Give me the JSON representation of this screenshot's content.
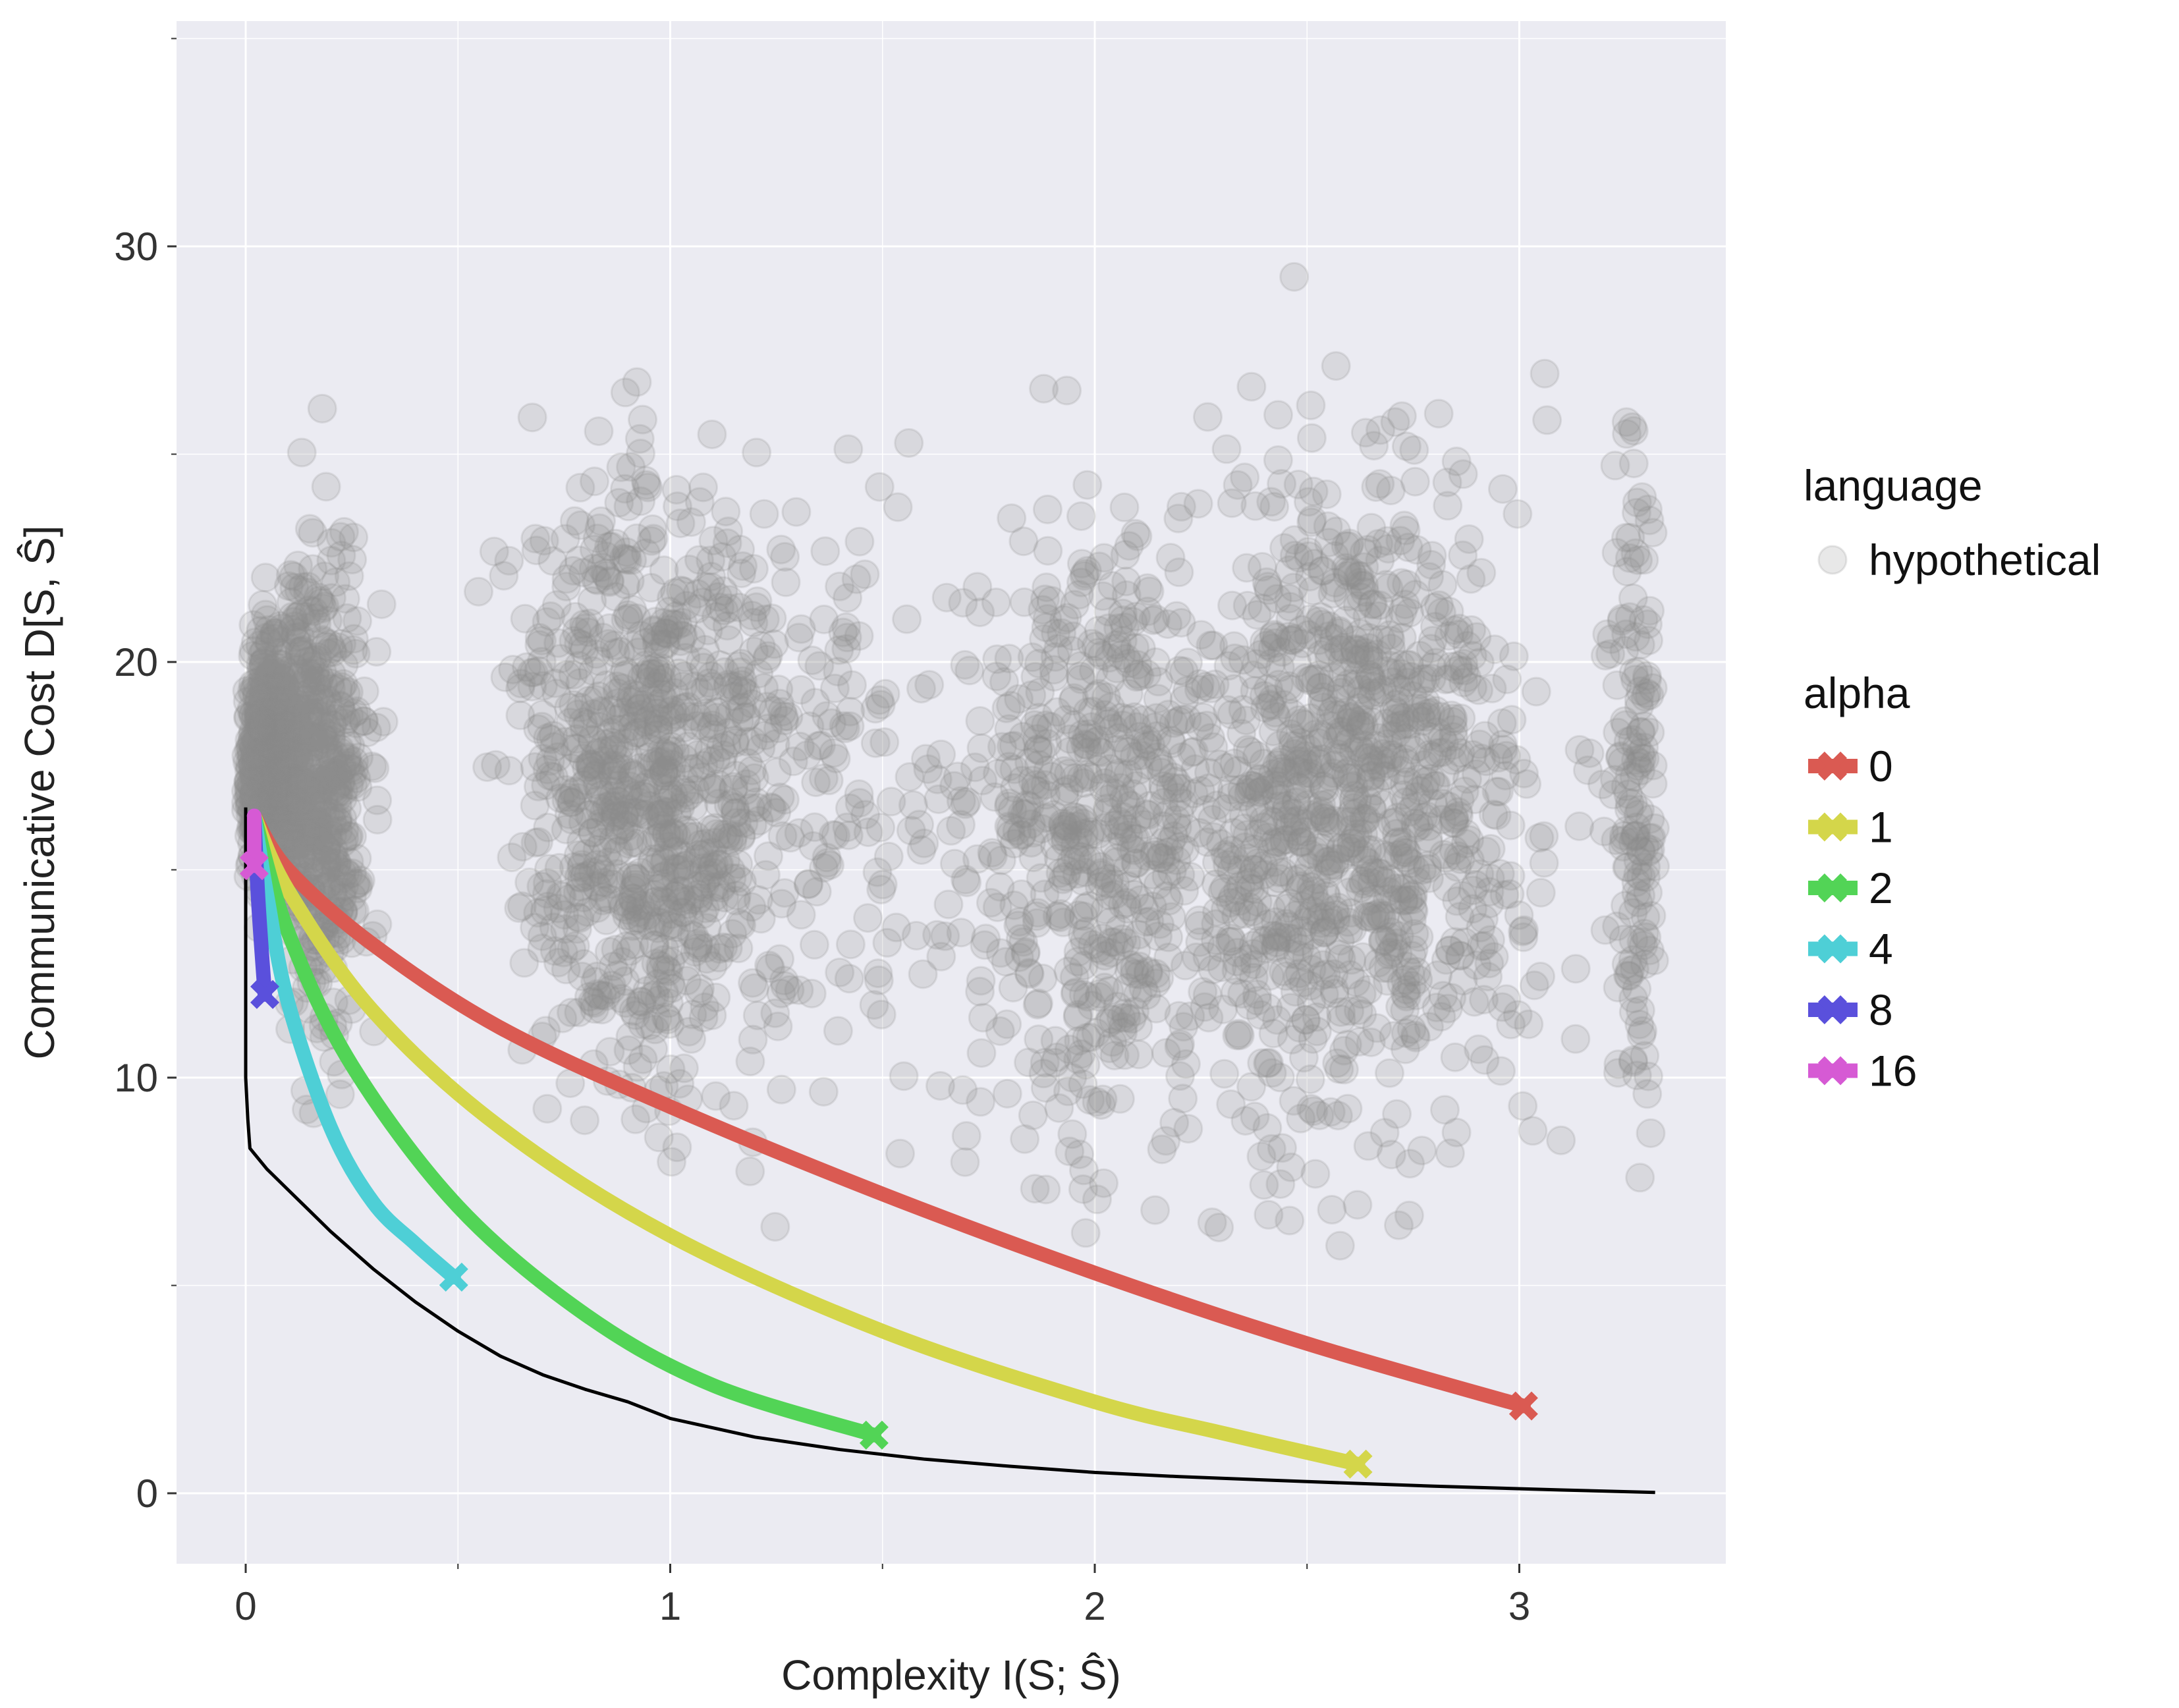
{
  "chart_data": {
    "type": "scatter",
    "xlabel": "Complexity I(S; Ŝ)",
    "ylabel": "Communicative Cost D[S, Ŝ]",
    "xlim": [
      -0.16,
      3.47
    ],
    "ylim": [
      -1.6,
      35.0
    ],
    "x_ticks": [
      0,
      1,
      2,
      3
    ],
    "y_ticks": [
      0,
      10,
      20,
      30
    ],
    "x_minor_ticks": [
      0.5,
      1.5,
      2.5
    ],
    "y_minor_ticks": [
      5,
      15,
      25,
      35
    ],
    "grid": true,
    "legend_position": "right",
    "hypothetical_color": "#8c8c8c",
    "panel_color": "#ebebf2",
    "frontier": {
      "color": "#000000",
      "points": [
        [
          0.0,
          16.5
        ],
        [
          0.0,
          12.0
        ],
        [
          0.0,
          10.0
        ],
        [
          0.005,
          9.0
        ],
        [
          0.01,
          8.3
        ],
        [
          0.05,
          7.8
        ],
        [
          0.1,
          7.3
        ],
        [
          0.15,
          6.8
        ],
        [
          0.2,
          6.3
        ],
        [
          0.3,
          5.4
        ],
        [
          0.4,
          4.6
        ],
        [
          0.5,
          3.9
        ],
        [
          0.6,
          3.3
        ],
        [
          0.7,
          2.85
        ],
        [
          0.8,
          2.5
        ],
        [
          0.9,
          2.2
        ],
        [
          1.0,
          1.8
        ],
        [
          1.2,
          1.35
        ],
        [
          1.4,
          1.05
        ],
        [
          1.6,
          0.82
        ],
        [
          1.8,
          0.65
        ],
        [
          2.0,
          0.5
        ],
        [
          2.2,
          0.4
        ],
        [
          2.5,
          0.28
        ],
        [
          2.8,
          0.17
        ],
        [
          3.1,
          0.08
        ],
        [
          3.32,
          0.02
        ]
      ]
    },
    "legend": {
      "language_title": "language",
      "language_items": [
        "hypothetical"
      ],
      "alpha_title": "alpha"
    },
    "series": [
      {
        "name": "0",
        "color": "#da5a52",
        "x": [
          0.02,
          0.1,
          0.3,
          0.6,
          1.0,
          1.5,
          2.0,
          2.5,
          3.01
        ],
        "y": [
          16.3,
          15.0,
          13.2,
          11.2,
          9.3,
          7.2,
          5.3,
          3.6,
          2.1
        ]
      },
      {
        "name": "1",
        "color": "#d4d64a",
        "x": [
          0.02,
          0.1,
          0.3,
          0.6,
          1.0,
          1.5,
          2.0,
          2.3,
          2.62
        ],
        "y": [
          16.3,
          14.5,
          11.6,
          8.8,
          6.2,
          3.9,
          2.2,
          1.45,
          0.7
        ]
      },
      {
        "name": "2",
        "color": "#52d456",
        "x": [
          0.02,
          0.1,
          0.25,
          0.5,
          0.8,
          1.1,
          1.48
        ],
        "y": [
          16.3,
          13.5,
          10.3,
          6.9,
          4.3,
          2.6,
          1.4
        ]
      },
      {
        "name": "4",
        "color": "#4ecfd6",
        "x": [
          0.02,
          0.05,
          0.1,
          0.2,
          0.3,
          0.4,
          0.49
        ],
        "y": [
          16.3,
          14.4,
          11.8,
          8.8,
          7.0,
          6.0,
          5.2
        ]
      },
      {
        "name": "8",
        "color": "#5a50dc",
        "x": [
          0.02,
          0.03,
          0.045
        ],
        "y": [
          16.3,
          14.2,
          12.0
        ]
      },
      {
        "name": "16",
        "color": "#d65ad4",
        "x": [
          0.02,
          0.02
        ],
        "y": [
          16.3,
          15.1
        ]
      }
    ]
  }
}
